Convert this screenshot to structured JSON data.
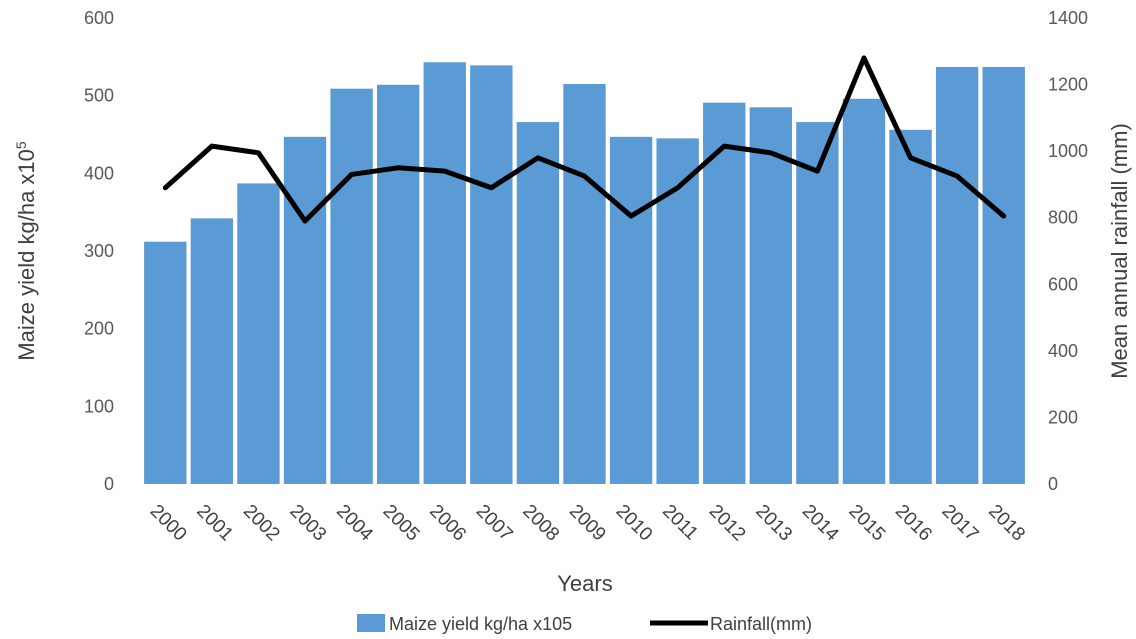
{
  "chart_data": {
    "type": "bar",
    "categories": [
      "2000",
      "2001",
      "2002",
      "2003",
      "2004",
      "2005",
      "2006",
      "2007",
      "2008",
      "2009",
      "2010",
      "2011",
      "2012",
      "2013",
      "2014",
      "2015",
      "2016",
      "2017",
      "2018"
    ],
    "series": [
      {
        "name": "Maize yield kg/ha x105",
        "type": "bar",
        "axis": "left",
        "color": "#5B9BD5",
        "values": [
          312,
          342,
          387,
          447,
          509,
          514,
          543,
          539,
          466,
          515,
          447,
          445,
          491,
          485,
          466,
          496,
          456,
          537,
          537
        ]
      },
      {
        "name": "Rainfall(mm)",
        "type": "line",
        "axis": "right",
        "color": "#000000",
        "values": [
          890,
          1015,
          995,
          790,
          930,
          950,
          940,
          890,
          980,
          925,
          805,
          890,
          1015,
          995,
          940,
          1280,
          980,
          925,
          805
        ]
      }
    ],
    "ylabel_left": "Maize yield kg/ha x10",
    "ylabel_left_sup": "5",
    "ylabel_right": "Mean annual rainfall (mm)",
    "xlabel": "Years",
    "ylim_left": [
      0,
      600
    ],
    "ylim_right": [
      0,
      1400
    ],
    "yticks_left": [
      0,
      100,
      200,
      300,
      400,
      500,
      600
    ],
    "yticks_right": [
      0,
      200,
      400,
      600,
      800,
      1000,
      1200,
      1400
    ],
    "legend_position": "bottom",
    "grid": false
  }
}
